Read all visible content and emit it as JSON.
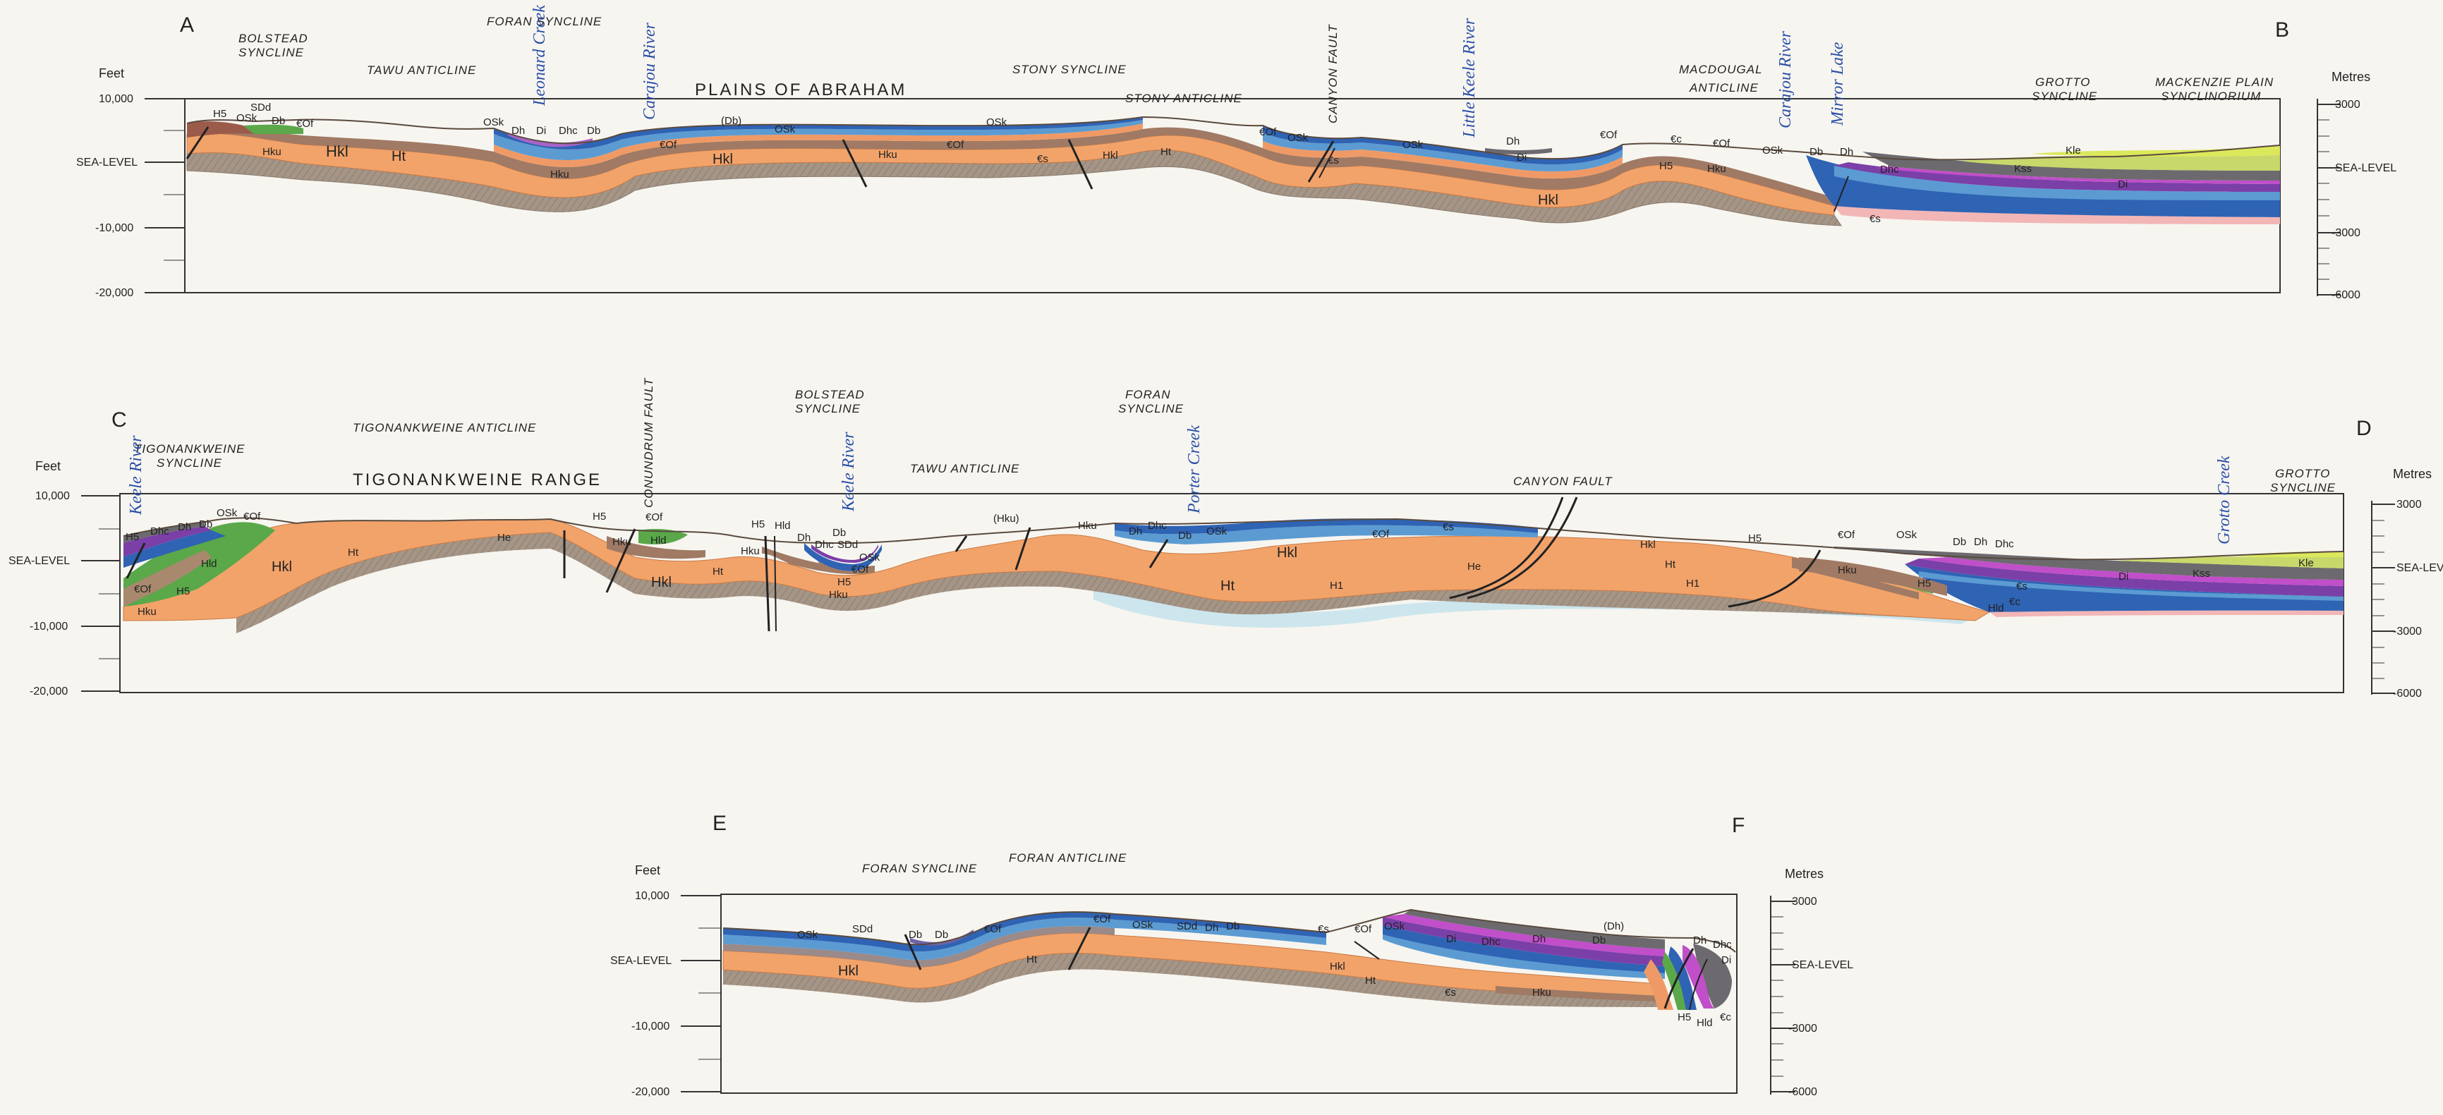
{
  "colors": {
    "Ht": "#a59586",
    "Hkl": "#f2a36a",
    "Hku": "#a07a64",
    "Hld": "#5aa84a",
    "H5": "#a8896e",
    "Cs": "#ef9a66",
    "COf": "#5b9bd2",
    "OSk": "#2f63b4",
    "SDd": "#3b3fa0",
    "Db": "#7b3fa8",
    "Dhc": "#9a8a8a",
    "Dh": "#a864c8",
    "Di": "#6c6a6e",
    "Kss": "#c9d86a",
    "Kle": "#dbe85c",
    "H1": "#cde6ee",
    "He": "#e9c7a7",
    "fault": "#222222",
    "river_text": "#2a4fa8"
  },
  "sections": [
    {
      "id": "AB",
      "start_label": "A",
      "end_label": "B",
      "left_axis": {
        "title": "Feet",
        "ticks": [
          "10,000",
          "SEA-LEVEL",
          "-10,000",
          "-20,000"
        ]
      },
      "right_axis": {
        "title": "Metres",
        "ticks": [
          "3000",
          "SEA-LEVEL",
          "-3000",
          "-6000"
        ]
      },
      "structures": [
        {
          "text": "BOLSTEAD",
          "line2": "SYNCLINE"
        },
        {
          "text": "TAWU ANTICLINE"
        },
        {
          "text": "FORAN SYNCLINE"
        },
        {
          "text": "PLAINS  OF  ABRAHAM"
        },
        {
          "text": "STONY SYNCLINE"
        },
        {
          "text": "STONY ANTICLINE"
        },
        {
          "text": "CANYON FAULT"
        },
        {
          "text": "MACDOUGAL",
          "line2": "ANTICLINE"
        },
        {
          "text": "GROTTO",
          "line2": "SYNCLINE"
        },
        {
          "text": "MACKENZIE PLAIN",
          "line2": "SYNCLINORIUM"
        }
      ],
      "rivers": [
        "Leonard Creek",
        "Carajou River",
        "Little Keele River",
        "Carajou River",
        "Mirror Lake"
      ],
      "units": [
        "H5",
        "OSk",
        "SDd",
        "Db",
        "€Of",
        "Hku",
        "Hkl",
        "Ht",
        "OSk",
        "Dh",
        "Di",
        "Dhc",
        "Db",
        "(Db)",
        "OSk",
        "€Of",
        "Hkl",
        "Hku",
        "OSk",
        "€Of",
        "Hku",
        "€s",
        "Hkl",
        "Ht",
        "€Of",
        "OSk",
        "€s",
        "OSk",
        "Dh",
        "Di",
        "€Of",
        "€c",
        "€Of",
        "H5",
        "Hku",
        "Hkl",
        "OSk",
        "Db",
        "Dh",
        "Dhc",
        "€s",
        "Kle",
        "Kss",
        "Di"
      ]
    },
    {
      "id": "CD",
      "start_label": "C",
      "end_label": "D",
      "left_axis": {
        "title": "Feet",
        "ticks": [
          "10,000",
          "SEA-LEVEL",
          "-10,000",
          "-20,000"
        ]
      },
      "right_axis": {
        "title": "Metres",
        "ticks": [
          "3000",
          "SEA-LEV",
          "-3000",
          "-6000"
        ]
      },
      "structures": [
        {
          "text": "TIGONANKWEINE",
          "line2": "SYNCLINE"
        },
        {
          "text": "TIGONANKWEINE ANTICLINE"
        },
        {
          "text": "TIGONANKWEINE RANGE"
        },
        {
          "text": "CONUNDRUM FAULT"
        },
        {
          "text": "BOLSTEAD",
          "line2": "SYNCLINE"
        },
        {
          "text": "TAWU ANTICLINE"
        },
        {
          "text": "FORAN",
          "line2": "SYNCLINE"
        },
        {
          "text": "CANYON FAULT"
        },
        {
          "text": "GROTTO",
          "line2": "SYNCLINE"
        }
      ],
      "rivers": [
        "Keele River",
        "Keele River",
        "Porter Creek",
        "Grotto Creek"
      ],
      "units": [
        "H5",
        "Dhc",
        "Dh",
        "Db",
        "OSk",
        "€Of",
        "Hld",
        "€Of",
        "H5",
        "Hku",
        "Hkl",
        "Ht",
        "He",
        "H5",
        "€Of",
        "Hku",
        "Hld",
        "Hkl",
        "H5",
        "Hld",
        "Dh",
        "Db",
        "Hku",
        "Dhc",
        "SDd",
        "OSk",
        "€Of",
        "H5",
        "Hku",
        "Ht",
        "(Hku)",
        "Hku",
        "Dh",
        "Dhc",
        "Db",
        "OSk",
        "Hkl",
        "€Of",
        "€s",
        "Ht",
        "H1",
        "He",
        "Hkl",
        "Ht",
        "H1",
        "H5",
        "€Of",
        "OSk",
        "Hku",
        "Db",
        "Dh",
        "Dhc",
        "H5",
        "€s",
        "€c",
        "Hld",
        "Di",
        "Kss",
        "Kle"
      ]
    },
    {
      "id": "EF",
      "start_label": "E",
      "end_label": "F",
      "left_axis": {
        "title": "Feet",
        "ticks": [
          "10,000",
          "SEA-LEVEL",
          "-10,000",
          "-20,000"
        ]
      },
      "right_axis": {
        "title": "Metres",
        "ticks": [
          "3000",
          "SEA-LEVEL",
          "-3000",
          "-6000"
        ]
      },
      "structures": [
        {
          "text": "FORAN SYNCLINE"
        },
        {
          "text": "FORAN ANTICLINE"
        }
      ],
      "rivers": [],
      "units": [
        "OSk",
        "SDd",
        "Db",
        "Db",
        "€Of",
        "€Of",
        "OSk",
        "SDd",
        "Dh",
        "Db",
        "Hkl",
        "Ht",
        "€s",
        "€Of",
        "OSk",
        "Di",
        "Dhc",
        "Dh",
        "(Dh)",
        "Db",
        "Dh",
        "Dhc",
        "Hkl",
        "Ht",
        "€s",
        "Hku",
        "H5",
        "Hld",
        "€c",
        "Di"
      ]
    }
  ]
}
